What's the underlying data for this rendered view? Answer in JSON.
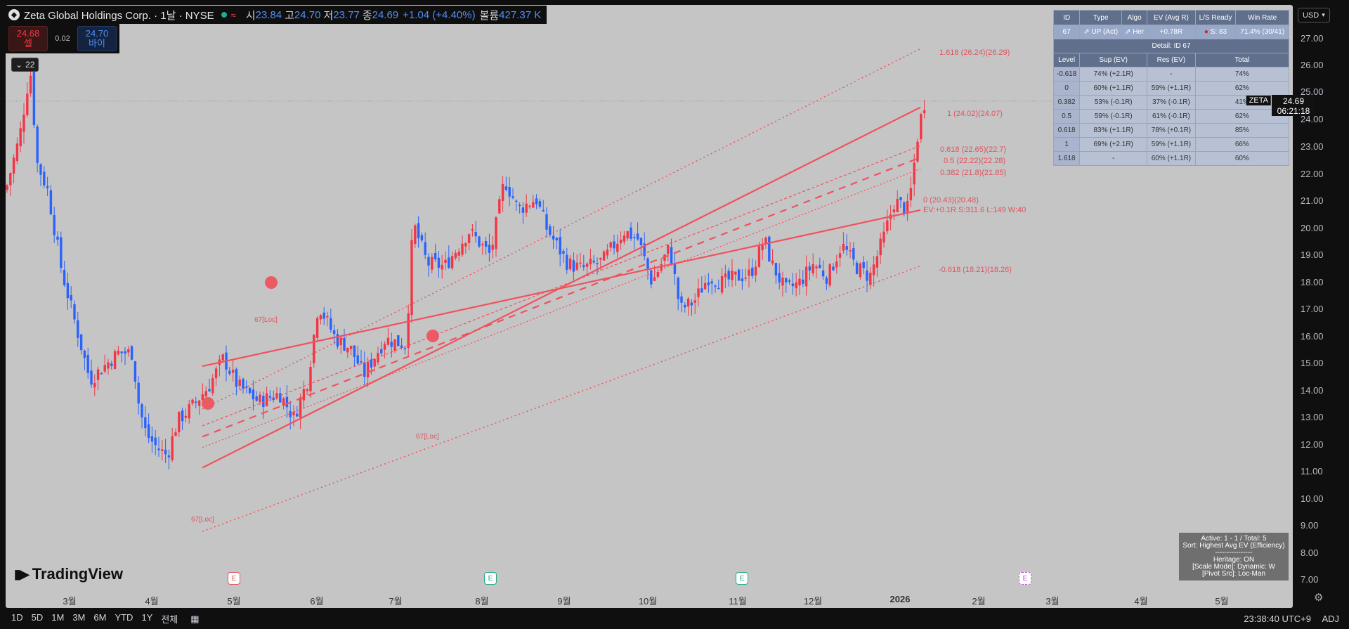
{
  "header": {
    "title": "Zeta Global Holdings Corp. · 1날 · NYSE",
    "open_label": "시",
    "open": "23.84",
    "high_label": "고",
    "high": "24.70",
    "low_label": "저",
    "low": "23.77",
    "close_label": "종",
    "close": "24.69",
    "change": "+1.04 (+4.40%)",
    "volume_label": "볼륨",
    "volume": "427.37 K"
  },
  "trade": {
    "sell_price": "24.68",
    "sell_label": "셀",
    "spread": "0.02",
    "buy_price": "24.70",
    "buy_label": "바이"
  },
  "indicator_collapse": "22",
  "currency": "USD",
  "price_tag": {
    "symbol": "ZETA",
    "price": "24.69",
    "countdown": "06:21:18"
  },
  "y_ticks": [
    "27.00",
    "26.00",
    "25.00",
    "24.00",
    "23.00",
    "22.00",
    "21.00",
    "20.00",
    "19.00",
    "18.00",
    "17.00",
    "16.00",
    "15.00",
    "14.00",
    "13.00",
    "12.00",
    "11.00",
    "10.00",
    "9.00",
    "8.00",
    "7.00"
  ],
  "x_ticks": [
    "3월",
    "4월",
    "5월",
    "6월",
    "7월",
    "8월",
    "9월",
    "10월",
    "11월",
    "12월",
    "2026",
    "2월",
    "3월",
    "4월",
    "5월"
  ],
  "earnings_marker": "E",
  "fib_labels": {
    "l1618": "1.618 (26.24)(26.29)",
    "l1": "1 (24.02)(24.07)",
    "l0618": "0.618 (22.65)(22.7)",
    "l05": "0.5 (22.22)(22.28)",
    "l0382": "0.382 (21.8)(21.85)",
    "l0": "0 (20.43)(20.48)",
    "ev": "EV:+0.1R S:311.6 L:149 W:40",
    "lm0618": "-0.618 (18.21)(18.26)"
  },
  "loc_label": "67[Loc]",
  "table": {
    "head": [
      "ID",
      "Type",
      "Algo",
      "EV (Avg R)",
      "L/S Ready",
      "Win Rate"
    ],
    "row1": [
      "67",
      "UP (Act)",
      "Her",
      "+0.78R",
      "S: 83",
      "71.4% (30/41)"
    ],
    "detail": "Detail: ID 67",
    "level_head": [
      "Level",
      "Sup (EV)",
      "Res (EV)",
      "Total"
    ],
    "rows": [
      [
        "-0.618",
        "74% (+2.1R)",
        "-",
        "74%"
      ],
      [
        "0",
        "60% (+1.1R)",
        "59% (+1.1R)",
        "62%"
      ],
      [
        "0.382",
        "53% (-0.1R)",
        "37% (-0.1R)",
        "41%"
      ],
      [
        "0.5",
        "59% (-0.1R)",
        "61% (-0.1R)",
        "62%"
      ],
      [
        "0.618",
        "83% (+1.1R)",
        "78% (+0.1R)",
        "85%"
      ],
      [
        "1",
        "69% (+2.1R)",
        "59% (+1.1R)",
        "66%"
      ],
      [
        "1.618",
        "-",
        "60% (+1.1R)",
        "60%"
      ]
    ]
  },
  "info": {
    "l1": "Active: 1 - 1 / Total: 5",
    "l2": "Sort: Highest Avg EV (Efficiency)",
    "l3": "----------------",
    "l4": "Heritage: ON",
    "l5": "[Scale Mode]: Dynamic: W",
    "l6": "[Pivot Src]: Loc-Man"
  },
  "brand": "TradingView",
  "bottom": {
    "ranges": [
      "1D",
      "5D",
      "1M",
      "3M",
      "6M",
      "YTD",
      "1Y",
      "전체"
    ],
    "time": "23:38:40 UTC+9",
    "adj": "ADJ"
  },
  "colors": {
    "up": "#f23645",
    "down": "#2962ff",
    "channel": "#f0525d",
    "bg": "#c5c5c5"
  }
}
